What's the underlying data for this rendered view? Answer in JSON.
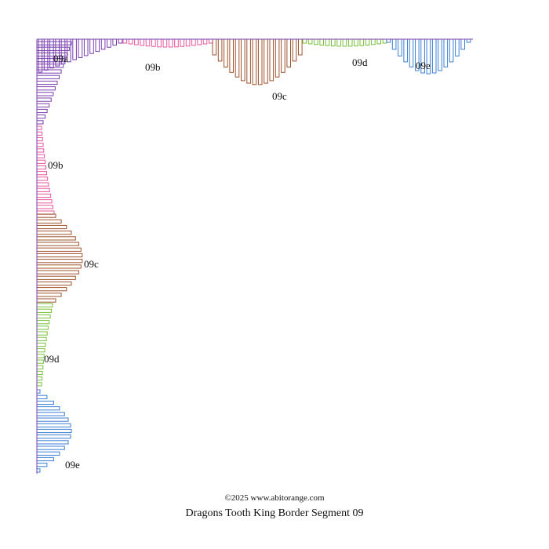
{
  "title": "Dragons Tooth King Border Segment 09",
  "copyright": "©2025 www.abitorange.com",
  "colors": {
    "09a": "#7b3fb0",
    "09b": "#e8559f",
    "09c": "#a0522d",
    "09d": "#77c13a",
    "09e": "#3b7fd6"
  },
  "segments": [
    {
      "id": "09a",
      "label": "09a"
    },
    {
      "id": "09b",
      "label": "09b"
    },
    {
      "id": "09c",
      "label": "09c"
    },
    {
      "id": "09d",
      "label": "09d"
    },
    {
      "id": "09e",
      "label": "09e"
    }
  ]
}
